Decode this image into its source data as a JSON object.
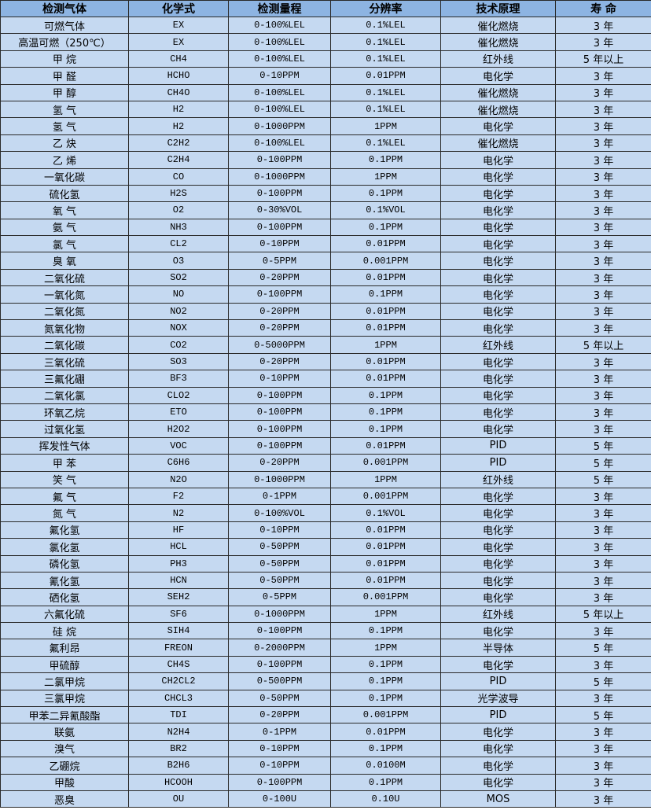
{
  "table": {
    "headers": [
      "检测气体",
      "化学式",
      "检测量程",
      "分辨率",
      "技术原理",
      "寿 命"
    ],
    "rows": [
      [
        "可燃气体",
        "EX",
        "0-100%LEL",
        "0.1%LEL",
        "催化燃烧",
        "3 年"
      ],
      [
        "高温可燃（250℃）",
        "EX",
        "0-100%LEL",
        "0.1%LEL",
        "催化燃烧",
        "3 年"
      ],
      [
        "甲 烷",
        "CH4",
        "0-100%LEL",
        "0.1%LEL",
        "红外线",
        "5 年以上"
      ],
      [
        "甲 醛",
        "HCHO",
        "0-10PPM",
        "0.01PPM",
        "电化学",
        "3 年"
      ],
      [
        "甲 醇",
        "CH4O",
        "0-100%LEL",
        "0.1%LEL",
        "催化燃烧",
        "3 年"
      ],
      [
        "氢 气",
        "H2",
        "0-100%LEL",
        "0.1%LEL",
        "催化燃烧",
        "3 年"
      ],
      [
        "氢 气",
        "H2",
        "0-1000PPM",
        "1PPM",
        "电化学",
        "3 年"
      ],
      [
        "乙 炔",
        "C2H2",
        "0-100%LEL",
        "0.1%LEL",
        "催化燃烧",
        "3 年"
      ],
      [
        "乙 烯",
        "C2H4",
        "0-100PPM",
        "0.1PPM",
        "电化学",
        "3 年"
      ],
      [
        "一氧化碳",
        "CO",
        "0-1000PPM",
        "1PPM",
        "电化学",
        "3 年"
      ],
      [
        "硫化氢",
        "H2S",
        "0-100PPM",
        "0.1PPM",
        "电化学",
        "3 年"
      ],
      [
        "氧 气",
        "O2",
        "0-30%VOL",
        "0.1%VOL",
        "电化学",
        "3 年"
      ],
      [
        "氨 气",
        "NH3",
        "0-100PPM",
        "0.1PPM",
        "电化学",
        "3 年"
      ],
      [
        "氯 气",
        "CL2",
        "0-10PPM",
        "0.01PPM",
        "电化学",
        "3 年"
      ],
      [
        "臭 氧",
        "O3",
        "0-5PPM",
        "0.001PPM",
        "电化学",
        "3 年"
      ],
      [
        "二氧化硫",
        "SO2",
        "0-20PPM",
        "0.01PPM",
        "电化学",
        "3 年"
      ],
      [
        "一氧化氮",
        "NO",
        "0-100PPM",
        "0.1PPM",
        "电化学",
        "3 年"
      ],
      [
        "二氧化氮",
        "NO2",
        "0-20PPM",
        "0.01PPM",
        "电化学",
        "3 年"
      ],
      [
        "氮氧化物",
        "NOX",
        "0-20PPM",
        "0.01PPM",
        "电化学",
        "3 年"
      ],
      [
        "二氧化碳",
        "CO2",
        "0-5000PPM",
        "1PPM",
        "红外线",
        "5 年以上"
      ],
      [
        "三氧化硫",
        "SO3",
        "0-20PPM",
        "0.01PPM",
        "电化学",
        "3 年"
      ],
      [
        "三氟化硼",
        "BF3",
        "0-10PPM",
        "0.01PPM",
        "电化学",
        "3 年"
      ],
      [
        "二氧化氯",
        "CLO2",
        "0-100PPM",
        "0.1PPM",
        "电化学",
        "3 年"
      ],
      [
        "环氧乙烷",
        "ETO",
        "0-100PPM",
        "0.1PPM",
        "电化学",
        "3 年"
      ],
      [
        "过氧化氢",
        "H2O2",
        "0-100PPM",
        "0.1PPM",
        "电化学",
        "3 年"
      ],
      [
        "挥发性气体",
        "VOC",
        "0-100PPM",
        "0.01PPM",
        "PID",
        "5 年"
      ],
      [
        "甲 苯",
        "C6H6",
        "0-20PPM",
        "0.001PPM",
        "PID",
        "5 年"
      ],
      [
        "笑 气",
        "N2O",
        "0-1000PPM",
        "1PPM",
        "红外线",
        "5 年"
      ],
      [
        "氟 气",
        "F2",
        "0-1PPM",
        "0.001PPM",
        "电化学",
        "3 年"
      ],
      [
        "氮 气",
        "N2",
        "0-100%VOL",
        "0.1%VOL",
        "电化学",
        "3 年"
      ],
      [
        "氟化氢",
        "HF",
        "0-10PPM",
        "0.01PPM",
        "电化学",
        "3 年"
      ],
      [
        "氯化氢",
        "HCL",
        "0-50PPM",
        "0.01PPM",
        "电化学",
        "3 年"
      ],
      [
        "磷化氢",
        "PH3",
        "0-50PPM",
        "0.01PPM",
        "电化学",
        "3 年"
      ],
      [
        "氰化氢",
        "HCN",
        "0-50PPM",
        "0.01PPM",
        "电化学",
        "3 年"
      ],
      [
        "硒化氢",
        "SEH2",
        "0-5PPM",
        "0.001PPM",
        "电化学",
        "3 年"
      ],
      [
        "六氟化硫",
        "SF6",
        "0-1000PPM",
        "1PPM",
        "红外线",
        "5 年以上"
      ],
      [
        "硅 烷",
        "SIH4",
        "0-100PPM",
        "0.1PPM",
        "电化学",
        "3 年"
      ],
      [
        "氟利昂",
        "FREON",
        "0-2000PPM",
        "1PPM",
        "半导体",
        "5 年"
      ],
      [
        "甲硫醇",
        "CH4S",
        "0-100PPM",
        "0.1PPM",
        "电化学",
        "3 年"
      ],
      [
        "二氯甲烷",
        "CH2CL2",
        "0-500PPM",
        "0.1PPM",
        "PID",
        "5 年"
      ],
      [
        "三氯甲烷",
        "CHCL3",
        "0-50PPM",
        "0.1PPM",
        "光学波导",
        "3 年"
      ],
      [
        "甲苯二异氰酸酯",
        "TDI",
        "0-20PPM",
        "0.001PPM",
        "PID",
        "5 年"
      ],
      [
        "联氨",
        "N2H4",
        "0-1PPM",
        "0.01PPM",
        "电化学",
        "3 年"
      ],
      [
        "溴气",
        "BR2",
        "0-10PPM",
        "0.1PPM",
        "电化学",
        "3 年"
      ],
      [
        "乙硼烷",
        "B2H6",
        "0-10PPM",
        "0.0100M",
        "电化学",
        "3 年"
      ],
      [
        "甲酸",
        "HCOOH",
        "0-100PPM",
        "0.1PPM",
        "电化学",
        "3 年"
      ],
      [
        "恶臭",
        "OU",
        "0-100U",
        "0.10U",
        "MOS",
        "3 年"
      ]
    ]
  },
  "colors": {
    "header_bg": "#8db4e2",
    "row_bg": "#c5d9f1",
    "border": "#2a2a2a"
  }
}
